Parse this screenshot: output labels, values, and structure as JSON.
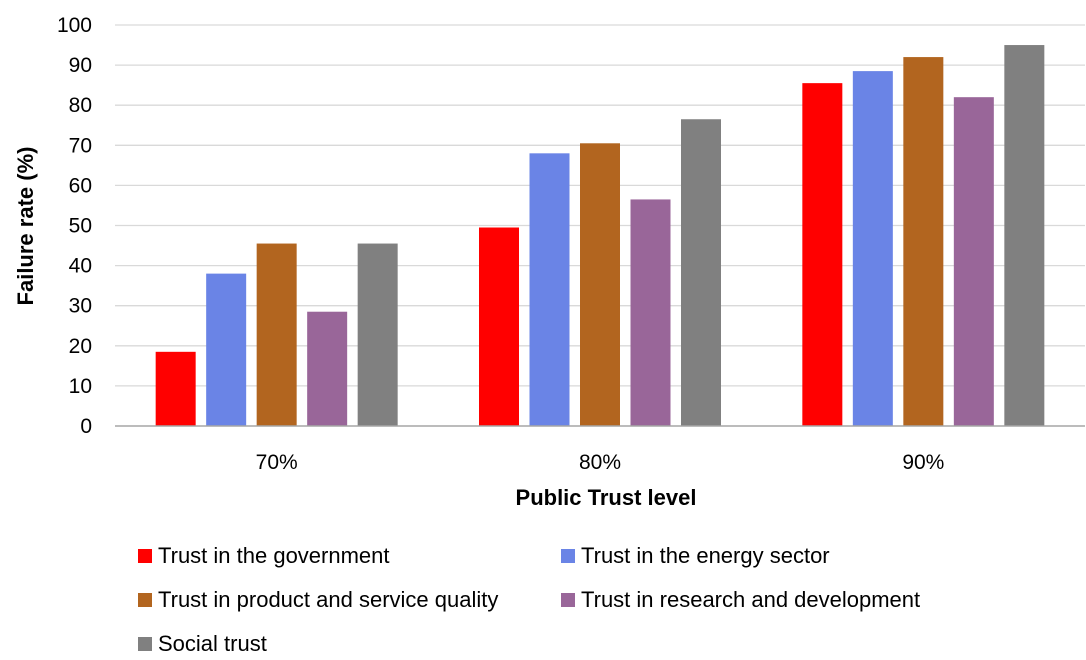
{
  "chart_data": {
    "type": "bar",
    "xlabel": "Public Trust level",
    "ylabel": "Failure rate (%)",
    "ylim": [
      0,
      100
    ],
    "yticks": [
      0,
      10,
      20,
      30,
      40,
      50,
      60,
      70,
      80,
      90,
      100
    ],
    "categories": [
      "70%",
      "80%",
      "90%"
    ],
    "series": [
      {
        "name": "Trust in the government",
        "color": "#ff0000",
        "values": [
          18.5,
          49.5,
          85.5
        ]
      },
      {
        "name": "Trust in the energy sector",
        "color": "#6a84e6",
        "values": [
          38,
          68,
          88.5
        ]
      },
      {
        "name": "Trust in product and service quality",
        "color": "#b2651f",
        "values": [
          45.5,
          70.5,
          92
        ]
      },
      {
        "name": "Trust in research and development",
        "color": "#996699",
        "values": [
          28.5,
          56.5,
          82
        ]
      },
      {
        "name": "Social trust",
        "color": "#808080",
        "values": [
          45.5,
          76.5,
          95
        ]
      }
    ],
    "grid": true,
    "legend_position": "bottom"
  }
}
